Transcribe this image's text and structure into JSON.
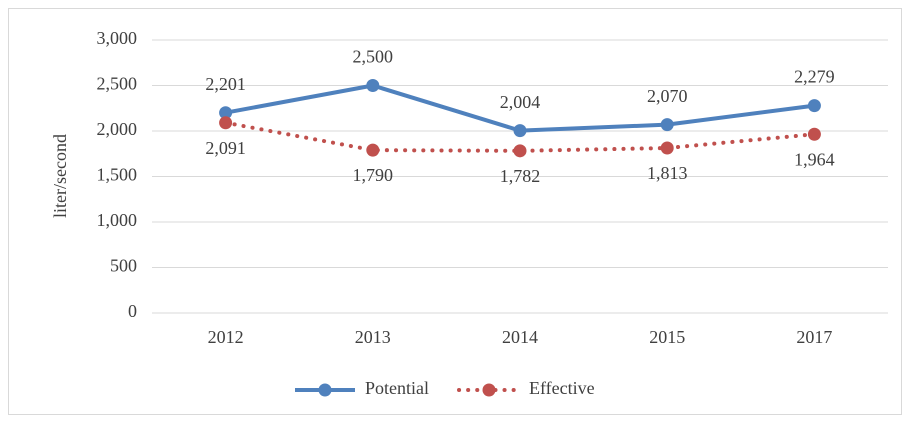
{
  "chart_data": {
    "type": "line",
    "y_label": "liter/second",
    "categories": [
      "2012",
      "2013",
      "2014",
      "2015",
      "2017"
    ],
    "series": [
      {
        "name": "Potential",
        "color": "#4f81bd",
        "style": "solid",
        "label_position": "above",
        "values": [
          2201,
          2500,
          2004,
          2070,
          2279
        ],
        "value_labels": [
          "2,201",
          "2,500",
          "2,004",
          "2,070",
          "2,279"
        ]
      },
      {
        "name": "Effective",
        "color": "#c0504d",
        "style": "dotted",
        "label_position": "below",
        "values": [
          2091,
          1790,
          1782,
          1813,
          1964
        ],
        "value_labels": [
          "2,091",
          "1,790",
          "1,782",
          "1,813",
          "1,964"
        ]
      }
    ],
    "ylim": [
      0,
      3000
    ],
    "yticks": [
      0,
      500,
      {
        "value": 1000,
        "label": "1,000"
      },
      {
        "value": 1500,
        "label": "1,500"
      },
      {
        "value": 2000,
        "label": "2,000"
      },
      {
        "value": 2500,
        "label": "2,500"
      },
      {
        "value": 3000,
        "label": "3,000"
      }
    ],
    "grid": true,
    "legend": "bottom"
  }
}
